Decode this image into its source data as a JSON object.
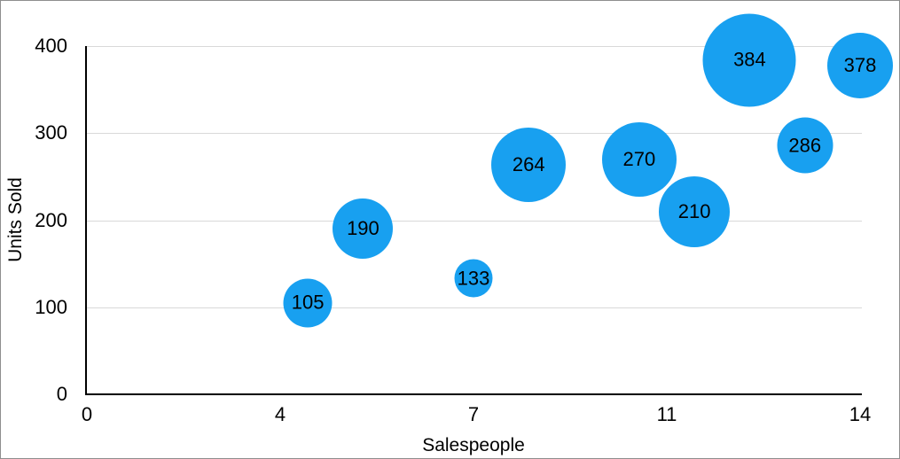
{
  "colors": {
    "bubble_color": "#18a0f0",
    "gridline_color": "#d9d9d9",
    "axis_color": "#000000",
    "text_color": "#000000",
    "border_color": "#8e8e8e"
  },
  "chart_data": {
    "type": "scatter",
    "subtype": "bubble",
    "title": "",
    "xlabel": "Salespeople",
    "ylabel": "Units Sold",
    "xlim": [
      0,
      14
    ],
    "ylim": [
      0,
      400
    ],
    "grid": "horizontal",
    "legend": "none",
    "x_ticks": [
      {
        "label": "0",
        "value": 0
      },
      {
        "label": "4",
        "value": 3.5
      },
      {
        "label": "7",
        "value": 7
      },
      {
        "label": "11",
        "value": 10.5
      },
      {
        "label": "14",
        "value": 14
      }
    ],
    "y_ticks": [
      0,
      100,
      200,
      300,
      400
    ],
    "series": [
      {
        "name": "Units Sold",
        "points": [
          {
            "x": 4,
            "y": 105,
            "label": "105",
            "radius_px": 27.5
          },
          {
            "x": 5,
            "y": 190,
            "label": "190",
            "radius_px": 34
          },
          {
            "x": 7,
            "y": 133,
            "label": "133",
            "radius_px": 21.5
          },
          {
            "x": 8,
            "y": 264,
            "label": "264",
            "radius_px": 42
          },
          {
            "x": 10,
            "y": 270,
            "label": "270",
            "radius_px": 42
          },
          {
            "x": 11,
            "y": 210,
            "label": "210",
            "radius_px": 40
          },
          {
            "x": 12,
            "y": 384,
            "label": "384",
            "radius_px": 52.5
          },
          {
            "x": 13,
            "y": 286,
            "label": "286",
            "radius_px": 31.5
          },
          {
            "x": 14,
            "y": 378,
            "label": "378",
            "radius_px": 37
          }
        ]
      }
    ]
  }
}
